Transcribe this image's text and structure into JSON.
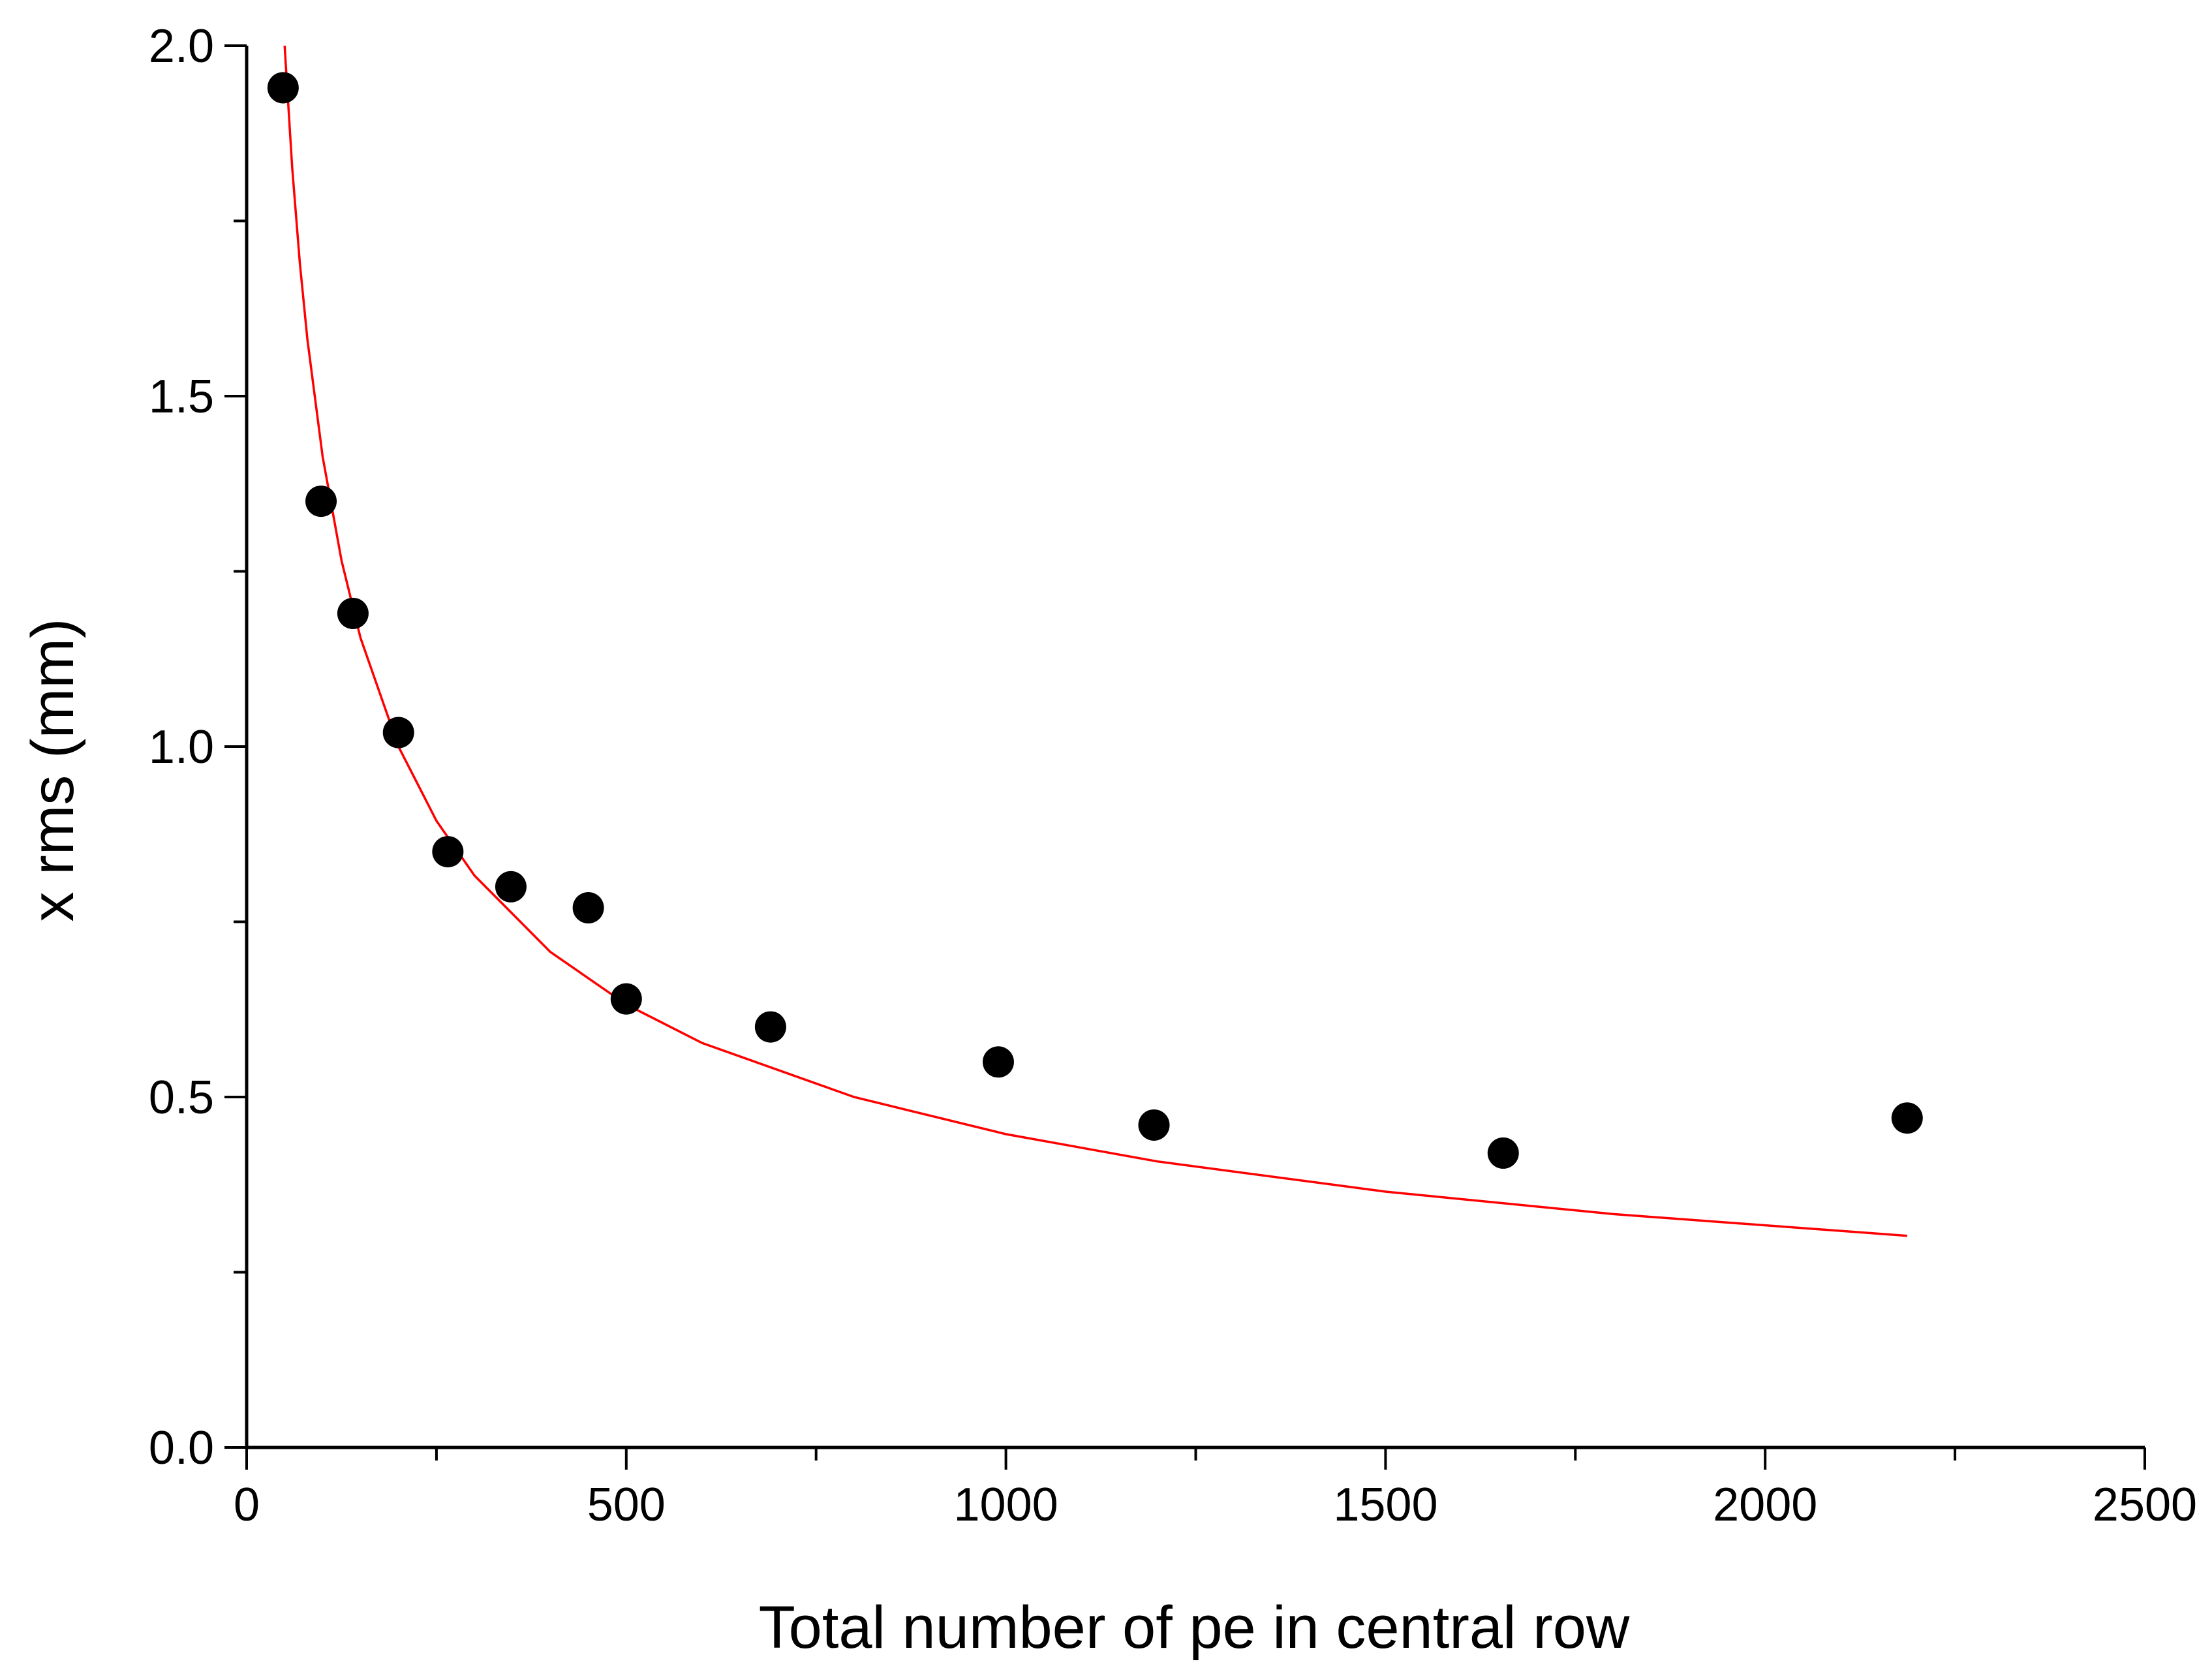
{
  "chart_data": {
    "type": "scatter",
    "title": "",
    "xlabel": "Total number of pe in central row",
    "ylabel": "x rms (mm)",
    "xlim": [
      0,
      2500
    ],
    "ylim": [
      0.0,
      2.0
    ],
    "x_ticks": [
      0,
      500,
      1000,
      1500,
      2000,
      2500
    ],
    "x_tick_labels": [
      "0",
      "500",
      "1000",
      "1500",
      "2000",
      "2500"
    ],
    "y_ticks": [
      0.0,
      0.5,
      1.0,
      1.5,
      2.0
    ],
    "y_tick_labels": [
      "0.0",
      "0.5",
      "1.0",
      "1.5",
      "2.0"
    ],
    "grid": false,
    "legend": "none",
    "series": [
      {
        "type": "scatter",
        "color": "#000000",
        "marker": "filled-circle",
        "x": [
          48,
          98,
          140,
          200,
          265,
          348,
          450,
          500,
          690,
          990,
          1195,
          1655,
          2187
        ],
        "y": [
          1.94,
          1.35,
          1.19,
          1.02,
          0.85,
          0.8,
          0.77,
          0.64,
          0.6,
          0.55,
          0.46,
          0.42,
          0.47
        ]
      },
      {
        "type": "line",
        "color": "#ff0000",
        "fit": "a/sqrt(x)",
        "x_range": [
          50,
          2187
        ],
        "x": [
          50,
          60,
          70,
          80,
          100,
          125,
          150,
          200,
          250,
          300,
          400,
          500,
          600,
          800,
          1000,
          1200,
          1500,
          1800,
          2187
        ],
        "y": [
          2.0,
          1.826,
          1.69,
          1.581,
          1.414,
          1.265,
          1.155,
          1.0,
          0.894,
          0.816,
          0.707,
          0.632,
          0.577,
          0.5,
          0.447,
          0.408,
          0.365,
          0.333,
          0.302
        ]
      }
    ]
  }
}
